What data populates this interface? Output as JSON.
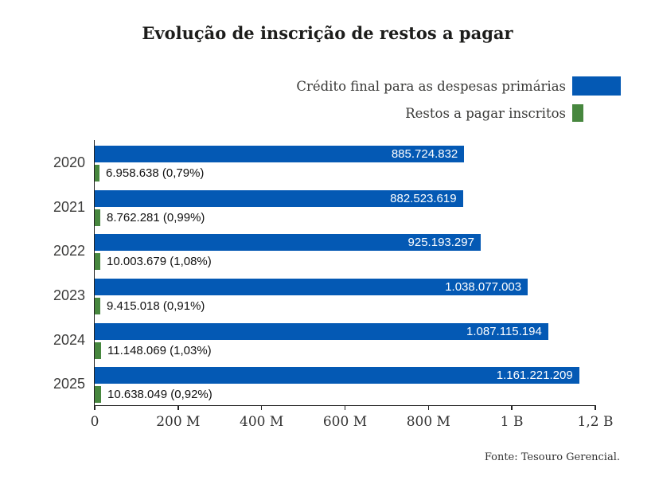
{
  "title": "Evolução de inscrição de restos a pagar",
  "source": "Fonte: Tesouro Gerencial.",
  "colors": {
    "primary_blue": "#0459B4",
    "secondary_green": "#47873E"
  },
  "chart_data": {
    "type": "bar",
    "orientation": "horizontal",
    "title": "Evolução de inscrição de restos a pagar",
    "categories": [
      "2020",
      "2021",
      "2022",
      "2023",
      "2024",
      "2025"
    ],
    "series": [
      {
        "name": "Crédito final para as despesas primárias",
        "color": "#0459B4",
        "values": [
          885724832,
          882523619,
          925193297,
          1038077003,
          1087115194,
          1161221209
        ],
        "labels": [
          "885.724.832",
          "882.523.619",
          "925.193.297",
          "1.038.077.003",
          "1.087.115.194",
          "1.161.221.209"
        ]
      },
      {
        "name": "Restos a pagar inscritos",
        "color": "#47873E",
        "values": [
          6958638,
          8762281,
          10003679,
          9415018,
          11148069,
          10638049
        ],
        "labels": [
          "6.958.638 (0,79%)",
          "8.762.281 (0,99%)",
          "10.003.679 (1,08%)",
          "9.415.018 (0,91%)",
          "11.148.069 (1,03%)",
          "10.638.049 (0,92%)"
        ]
      }
    ],
    "xlim": [
      0,
      1200000000
    ],
    "x_ticks": [
      {
        "value": 0,
        "label": "0"
      },
      {
        "value": 200000000,
        "label": "200 M"
      },
      {
        "value": 400000000,
        "label": "400 M"
      },
      {
        "value": 600000000,
        "label": "600 M"
      },
      {
        "value": 800000000,
        "label": "800 M"
      },
      {
        "value": 1000000000,
        "label": "1 B"
      },
      {
        "value": 1200000000,
        "label": "1,2 B"
      }
    ],
    "legend_position": "top-right",
    "grid": false,
    "source": "Fonte: Tesouro Gerencial."
  }
}
